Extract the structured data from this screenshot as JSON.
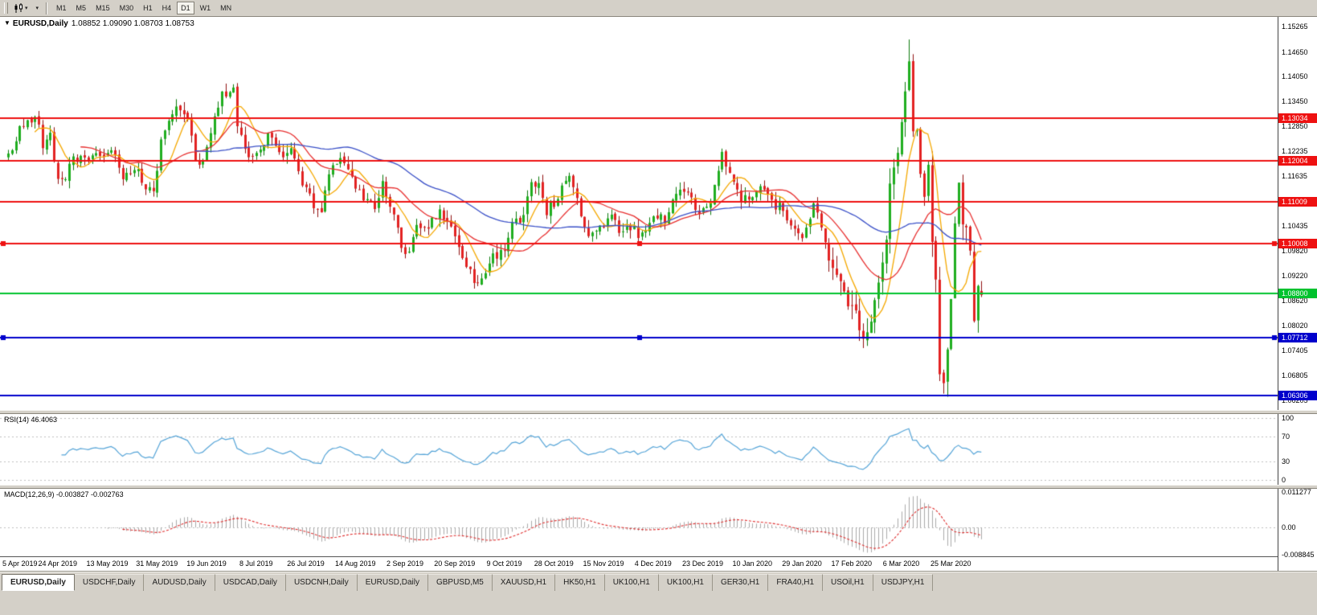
{
  "toolbar": {
    "caret_glyph": "▾",
    "timeframes": [
      "M1",
      "M5",
      "M15",
      "M30",
      "H1",
      "H4",
      "D1",
      "W1",
      "MN"
    ],
    "active_timeframe": "D1"
  },
  "main_chart": {
    "collapse_glyph": "▼",
    "symbol_title": "EURUSD,Daily",
    "ohlc_text": "1.08852 1.09090 1.08703 1.08753",
    "price_ticks": [
      "1.15265",
      "1.14650",
      "1.14050",
      "1.13450",
      "1.12850",
      "1.12235",
      "1.11635",
      "1.11035",
      "1.10435",
      "1.09820",
      "1.09220",
      "1.08620",
      "1.08020",
      "1.07405",
      "1.06805",
      "1.06205"
    ],
    "hlines": [
      {
        "price": 1.13034,
        "label": "1.13034",
        "color": "#ee1111",
        "handles": false
      },
      {
        "price": 1.12004,
        "label": "1.12004",
        "color": "#ee1111",
        "handles": false
      },
      {
        "price": 1.11009,
        "label": "1.11009",
        "color": "#ee1111",
        "handles": false
      },
      {
        "price": 1.10008,
        "label": "1.10008",
        "color": "#ee1111",
        "handles": true
      },
      {
        "price": 1.088,
        "label": "1.08800",
        "color": "#00c22e",
        "handles": false
      },
      {
        "price": 1.07712,
        "label": "1.07712",
        "color": "#0000cc",
        "handles": true
      },
      {
        "price": 1.06306,
        "label": "1.06306",
        "color": "#0000cc",
        "handles": false
      }
    ]
  },
  "colors": {
    "chart_bg": "#ffffff",
    "toolbar_bg": "#d4d0c8",
    "candle_up": "#1fae1f",
    "candle_up_border": "#0b7a0b",
    "candle_down": "#e32222",
    "candle_down_border": "#8f0f0f",
    "level_line": "#c0c0c0",
    "axis_text": "#000000"
  },
  "chart_data": {
    "type": "candlestick",
    "symbol": "EURUSD",
    "period": "Daily",
    "candle_count": 256,
    "x_labels": [
      "5 Apr 2019",
      "24 Apr 2019",
      "13 May 2019",
      "31 May 2019",
      "19 Jun 2019",
      "8 Jul 2019",
      "26 Jul 2019",
      "14 Aug 2019",
      "2 Sep 2019",
      "20 Sep 2019",
      "9 Oct 2019",
      "28 Oct 2019",
      "15 Nov 2019",
      "4 Dec 2019",
      "23 Dec 2019",
      "10 Jan 2020",
      "29 Jan 2020",
      "17 Feb 2020",
      "6 Mar 2020",
      "25 Mar 2020"
    ],
    "candles_per_label": 13,
    "close_waypoints": [
      [
        0,
        1.1216
      ],
      [
        3,
        1.1274
      ],
      [
        5,
        1.13
      ],
      [
        8,
        1.1296
      ],
      [
        9,
        1.1236
      ],
      [
        11,
        1.1258
      ],
      [
        13,
        1.1153
      ],
      [
        15,
        1.115
      ],
      [
        17,
        1.1215
      ],
      [
        20,
        1.12
      ],
      [
        23,
        1.121
      ],
      [
        26,
        1.1223
      ],
      [
        28,
        1.1207
      ],
      [
        30,
        1.1158
      ],
      [
        32,
        1.1166
      ],
      [
        34,
        1.1182
      ],
      [
        36,
        1.113
      ],
      [
        38,
        1.1133
      ],
      [
        39,
        1.1168
      ],
      [
        40,
        1.1241
      ],
      [
        44,
        1.1334
      ],
      [
        47,
        1.1312
      ],
      [
        49,
        1.1207
      ],
      [
        51,
        1.1195
      ],
      [
        52,
        1.1227
      ],
      [
        54,
        1.131
      ],
      [
        56,
        1.1366
      ],
      [
        59,
        1.1373
      ],
      [
        60,
        1.1285
      ],
      [
        62,
        1.122
      ],
      [
        65,
        1.1213
      ],
      [
        68,
        1.1267
      ],
      [
        71,
        1.1215
      ],
      [
        74,
        1.123
      ],
      [
        77,
        1.1145
      ],
      [
        78,
        1.1128
      ],
      [
        81,
        1.1075
      ],
      [
        82,
        1.1085
      ],
      [
        85,
        1.12
      ],
      [
        88,
        1.1199
      ],
      [
        91,
        1.1139
      ],
      [
        94,
        1.11
      ],
      [
        96,
        1.1085
      ],
      [
        98,
        1.1143
      ],
      [
        100,
        1.1101
      ],
      [
        103,
        1.0991
      ],
      [
        104,
        1.097
      ],
      [
        107,
        1.1035
      ],
      [
        110,
        1.1048
      ],
      [
        113,
        1.1073
      ],
      [
        117,
        1.1017
      ],
      [
        120,
        1.095
      ],
      [
        123,
        1.0899
      ],
      [
        126,
        1.096
      ],
      [
        130,
        1.0989
      ],
      [
        132,
        1.104
      ],
      [
        135,
        1.107
      ],
      [
        137,
        1.114
      ],
      [
        139,
        1.115
      ],
      [
        141,
        1.108
      ],
      [
        143,
        1.11
      ],
      [
        146,
        1.1152
      ],
      [
        147,
        1.1166
      ],
      [
        152,
        1.1018
      ],
      [
        156,
        1.1051
      ],
      [
        157,
        1.1072
      ],
      [
        161,
        1.1021
      ],
      [
        163,
        1.104
      ],
      [
        166,
        1.1017
      ],
      [
        169,
        1.1077
      ],
      [
        172,
        1.106
      ],
      [
        175,
        1.113
      ],
      [
        178,
        1.1115
      ],
      [
        181,
        1.1077
      ],
      [
        184,
        1.109
      ],
      [
        187,
        1.1212
      ],
      [
        189,
        1.116
      ],
      [
        192,
        1.111
      ],
      [
        195,
        1.1122
      ],
      [
        197,
        1.1138
      ],
      [
        200,
        1.1095
      ],
      [
        203,
        1.1085
      ],
      [
        206,
        1.103
      ],
      [
        208,
        1.1011
      ],
      [
        211,
        1.1093
      ],
      [
        213,
        1.104
      ],
      [
        216,
        1.0946
      ],
      [
        219,
        1.087
      ],
      [
        221,
        1.0835
      ],
      [
        224,
        1.079
      ],
      [
        226,
        1.0812
      ],
      [
        228,
        1.0885
      ],
      [
        230,
        1.1026
      ],
      [
        231,
        1.1134
      ],
      [
        232,
        1.1173
      ],
      [
        234,
        1.1288
      ],
      [
        236,
        1.1449
      ],
      [
        237,
        1.1281
      ],
      [
        238,
        1.1271
      ],
      [
        239,
        1.1184
      ],
      [
        240,
        1.1109
      ],
      [
        241,
        1.118
      ],
      [
        242,
        1.0998
      ],
      [
        243,
        1.0917
      ],
      [
        244,
        1.0693
      ],
      [
        245,
        1.0655
      ],
      [
        246,
        1.0727
      ],
      [
        247,
        1.088
      ],
      [
        248,
        1.103
      ],
      [
        249,
        1.1141
      ],
      [
        250,
        1.1048
      ],
      [
        251,
        1.1031
      ],
      [
        252,
        1.0963
      ],
      [
        253,
        1.0815
      ],
      [
        254,
        1.0905
      ],
      [
        255,
        1.0875
      ]
    ],
    "wick_overrides": {
      "236": {
        "high": 1.1495
      },
      "244": {
        "low": 1.067
      },
      "245": {
        "low": 1.0636
      }
    },
    "last_candle_ohlc": [
      1.08852,
      1.0909,
      1.08703,
      1.08753
    ],
    "moving_averages": [
      {
        "period": 8,
        "type": "sma",
        "color": "#f5a800"
      },
      {
        "period": 20,
        "type": "sma",
        "color": "#e83030"
      },
      {
        "period": 50,
        "type": "sma",
        "color": "#3a50c8"
      }
    ]
  },
  "rsi_panel": {
    "label": "RSI(14) 46.4063",
    "period": 14,
    "current_value": 46.4063,
    "levels": [
      "100",
      "70",
      "30",
      "0"
    ],
    "line_color": "#56a5d8"
  },
  "macd_panel": {
    "label": "MACD(12,26,9) -0.003827 -0.002763",
    "fast": 12,
    "slow": 26,
    "signal": 9,
    "current_values": [
      -0.003827,
      -0.002763
    ],
    "axis_ticks": [
      "0.011277",
      "0.00",
      "-0.008845"
    ],
    "axis_range": [
      -0.008845,
      0.011277
    ],
    "histogram_color": "#aaaaaa",
    "signal_color": "#e03030"
  },
  "tabs": [
    "EURUSD,Daily",
    "USDCHF,Daily",
    "AUDUSD,Daily",
    "USDCAD,Daily",
    "USDCNH,Daily",
    "EURUSD,Daily",
    "GBPUSD,M5",
    "XAUUSD,H1",
    "HK50,H1",
    "UK100,H1",
    "UK100,H1",
    "GER30,H1",
    "FRA40,H1",
    "USOil,H1",
    "USDJPY,H1"
  ],
  "active_tab_index": 0
}
